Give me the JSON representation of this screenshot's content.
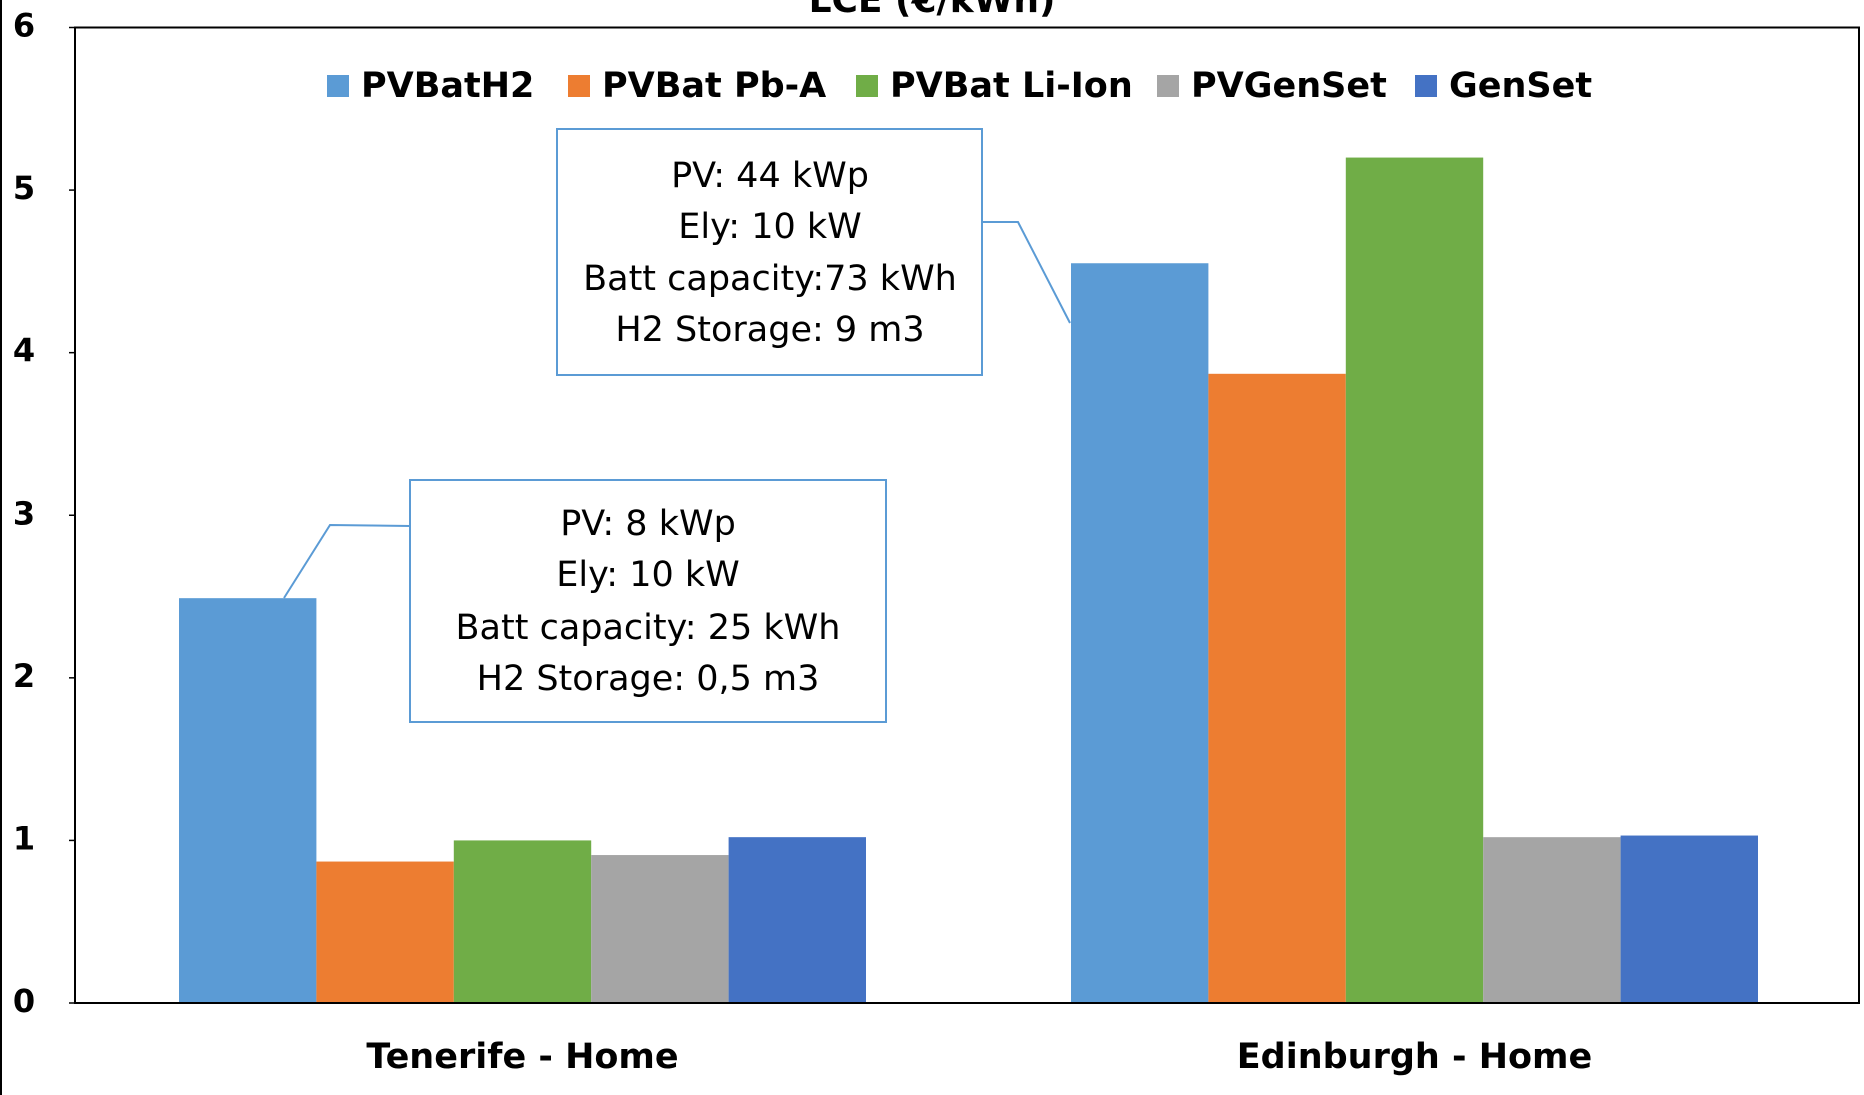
{
  "chart_data": {
    "type": "bar",
    "title": "LCE (€/kWh)",
    "categories": [
      "Tenerife - Home",
      "Edinburgh - Home"
    ],
    "series": [
      {
        "name": "PVBatH2",
        "color": "#5b9bd5",
        "values": [
          2.49,
          4.55
        ]
      },
      {
        "name": "PVBat Pb-A",
        "color": "#ed7d31",
        "values": [
          0.87,
          3.87
        ]
      },
      {
        "name": "PVBat Li-Ion",
        "color": "#70ad47",
        "values": [
          1.0,
          5.2
        ]
      },
      {
        "name": "PVGenSet",
        "color": "#a5a5a5",
        "values": [
          0.91,
          1.02
        ]
      },
      {
        "name": "GenSet",
        "color": "#4472c4",
        "values": [
          1.02,
          1.03
        ]
      }
    ],
    "ylim": [
      0,
      6
    ],
    "yticks": [
      0,
      1,
      2,
      3,
      4,
      5,
      6
    ],
    "legend": "top",
    "annotations": [
      {
        "lines": [
          "PV: 8 kWp",
          "Ely: 10 kW",
          "Batt capacity: 25 kWh",
          "H2 Storage: 0,5 m3"
        ]
      },
      {
        "lines": [
          "PV: 44 kWp",
          "Ely: 10 kW",
          "Batt capacity:73 kWh",
          "H2 Storage: 9 m3"
        ]
      }
    ]
  }
}
